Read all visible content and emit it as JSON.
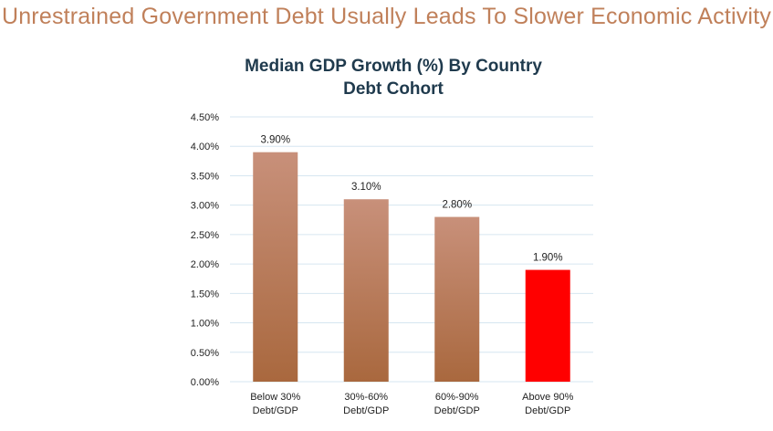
{
  "page": {
    "headline": "Unrestrained Government Debt Usually Leads To Slower Economic Activity"
  },
  "chart_data": {
    "type": "bar",
    "title_lines": [
      "Median GDP Growth (%) By Country",
      "Debt Cohort"
    ],
    "categories": [
      [
        "Below 30%",
        "Debt/GDP"
      ],
      [
        "30%-60%",
        "Debt/GDP"
      ],
      [
        "60%-90%",
        "Debt/GDP"
      ],
      [
        "Above 90%",
        "Debt/GDP"
      ]
    ],
    "values": [
      3.9,
      3.1,
      2.8,
      1.9
    ],
    "data_labels": [
      "3.90%",
      "3.10%",
      "2.80%",
      "1.90%"
    ],
    "yticks": [
      "0.00%",
      "0.50%",
      "1.00%",
      "1.50%",
      "2.00%",
      "2.50%",
      "3.00%",
      "3.50%",
      "4.00%",
      "4.50%"
    ],
    "ylim": [
      0,
      4.5
    ],
    "grid": true,
    "colors": {
      "bar_top": "#C8907A",
      "bar_bottom": "#A9683E",
      "highlight": "#FF0000",
      "gridline": "#D6E6F0",
      "headline": "#C0805A",
      "title": "#1F3A4D"
    },
    "highlight_index": 3
  }
}
